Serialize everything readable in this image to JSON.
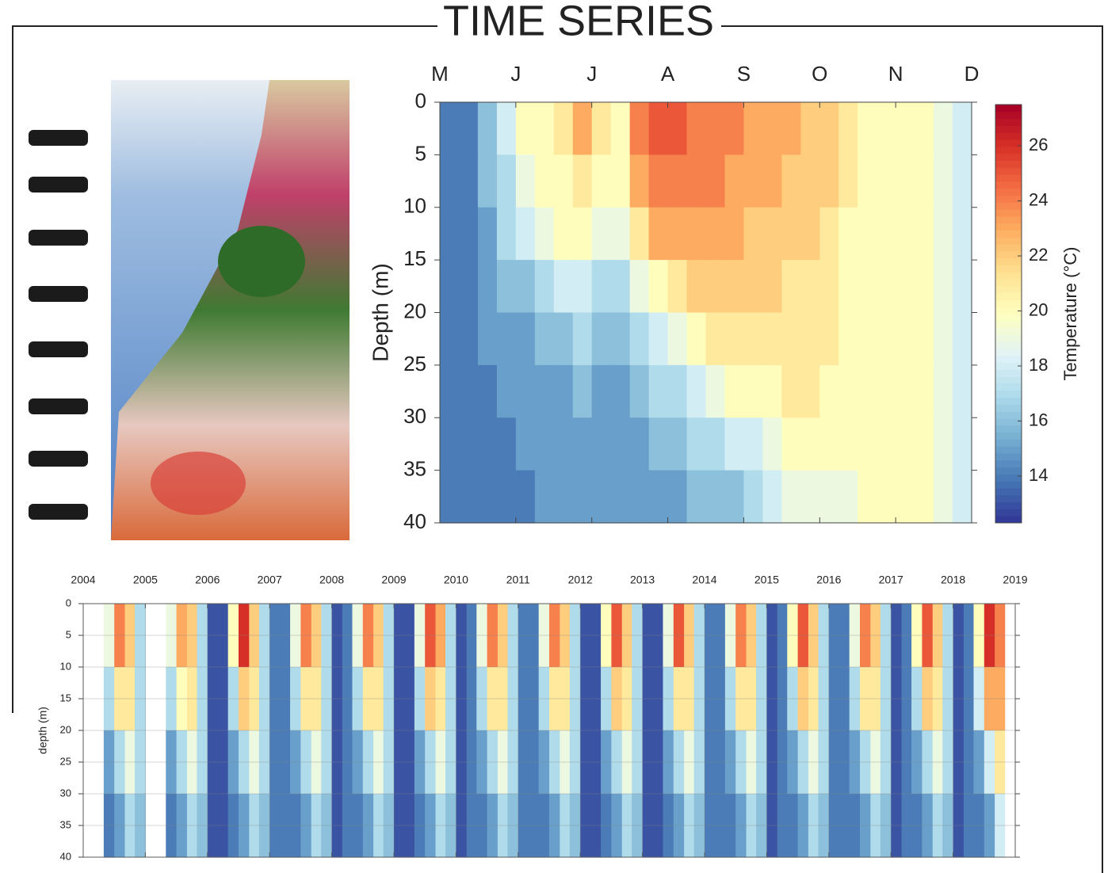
{
  "title": "TIME SERIES",
  "chart_data": [
    {
      "type": "heatmap",
      "ylabel": "Depth (m)",
      "xlim": [
        0,
        7
      ],
      "xticks": [
        {
          "value": 0,
          "label": "M"
        },
        {
          "value": 1,
          "label": "J"
        },
        {
          "value": 2,
          "label": "J"
        },
        {
          "value": 3,
          "label": "A"
        },
        {
          "value": 4,
          "label": "S"
        },
        {
          "value": 5,
          "label": "O"
        },
        {
          "value": 6,
          "label": "N"
        },
        {
          "value": 7,
          "label": "D"
        }
      ],
      "ylim": [
        0,
        40
      ],
      "y_reversed": true,
      "yticks": [
        0,
        5,
        10,
        15,
        20,
        25,
        30,
        35,
        40
      ],
      "xbins": [
        0,
        0.25,
        0.5,
        0.75,
        1,
        1.25,
        1.5,
        1.75,
        2,
        2.25,
        2.5,
        2.75,
        3,
        3.25,
        3.5,
        3.75,
        4,
        4.25,
        4.5,
        4.75,
        5,
        5.25,
        5.5,
        5.75,
        6,
        6.25,
        6.5,
        6.75,
        7
      ],
      "ybins": [
        0,
        5,
        10,
        15,
        20,
        25,
        30,
        35,
        40
      ],
      "z": [
        [
          14,
          14,
          16,
          18,
          20,
          20,
          21,
          23,
          21,
          20,
          24,
          25,
          25,
          24,
          24,
          24,
          23,
          23,
          23,
          22,
          22,
          21,
          20,
          20,
          20,
          20,
          19,
          18
        ],
        [
          14,
          14,
          16,
          17,
          19,
          20,
          20,
          21,
          20,
          20,
          23,
          24,
          24,
          24,
          24,
          23,
          23,
          23,
          22,
          22,
          22,
          21,
          20,
          20,
          20,
          20,
          19,
          18
        ],
        [
          14,
          14,
          15,
          17,
          18,
          19,
          20,
          20,
          19,
          19,
          21,
          23,
          23,
          23,
          23,
          23,
          22,
          22,
          22,
          22,
          21,
          20,
          20,
          20,
          20,
          20,
          19,
          18
        ],
        [
          14,
          14,
          15,
          16,
          16,
          17,
          18,
          18,
          17,
          17,
          19,
          20,
          21,
          22,
          22,
          22,
          22,
          22,
          21,
          21,
          21,
          20,
          20,
          20,
          20,
          20,
          19,
          18
        ],
        [
          14,
          14,
          15,
          15,
          15,
          16,
          16,
          17,
          16,
          16,
          17,
          18,
          19,
          20,
          21,
          21,
          21,
          21,
          21,
          21,
          21,
          20,
          20,
          20,
          20,
          20,
          19,
          18
        ],
        [
          14,
          14,
          14,
          15,
          15,
          15,
          15,
          16,
          15,
          15,
          16,
          17,
          17,
          18,
          19,
          20,
          20,
          20,
          21,
          21,
          20,
          20,
          20,
          20,
          20,
          20,
          19,
          18
        ],
        [
          14,
          14,
          14,
          14,
          15,
          15,
          15,
          15,
          15,
          15,
          15,
          16,
          16,
          17,
          17,
          18,
          18,
          19,
          20,
          20,
          20,
          20,
          20,
          20,
          20,
          20,
          19,
          18
        ],
        [
          14,
          14,
          14,
          14,
          14,
          15,
          15,
          15,
          15,
          15,
          15,
          15,
          15,
          16,
          16,
          16,
          17,
          18,
          19,
          19,
          19,
          19,
          20,
          20,
          20,
          20,
          19,
          18
        ]
      ],
      "clim": [
        12.3,
        27.5
      ],
      "colormap": [
        "#313695",
        "#4575b4",
        "#74add1",
        "#abd9e9",
        "#e0f3f8",
        "#ffffbf",
        "#fee090",
        "#fdae61",
        "#f46d43",
        "#d73027",
        "#a50026"
      ],
      "colorbar": {
        "label": "Temperature (°C)",
        "ticks": [
          14,
          16,
          18,
          20,
          22,
          24,
          26
        ]
      }
    },
    {
      "type": "heatmap",
      "ylabel": "depth (m)",
      "xlim": [
        2004,
        2019
      ],
      "xticks": [
        2004,
        2005,
        2006,
        2007,
        2008,
        2009,
        2010,
        2011,
        2012,
        2013,
        2014,
        2015,
        2016,
        2017,
        2018,
        2019
      ],
      "ylim": [
        0,
        40
      ],
      "y_reversed": true,
      "yticks": [
        0,
        5,
        10,
        15,
        20,
        25,
        30,
        35,
        40
      ],
      "grid": true,
      "xbins": [
        2004,
        2004.17,
        2004.33,
        2004.5,
        2004.67,
        2004.83,
        2005,
        2005.17,
        2005.33,
        2005.5,
        2005.67,
        2005.83,
        2006,
        2006.17,
        2006.33,
        2006.5,
        2006.67,
        2006.83,
        2007,
        2007.17,
        2007.33,
        2007.5,
        2007.67,
        2007.83,
        2008,
        2008.17,
        2008.33,
        2008.5,
        2008.67,
        2008.83,
        2009,
        2009.17,
        2009.33,
        2009.5,
        2009.67,
        2009.83,
        2010,
        2010.17,
        2010.33,
        2010.5,
        2010.67,
        2010.83,
        2011,
        2011.17,
        2011.33,
        2011.5,
        2011.67,
        2011.83,
        2012,
        2012.17,
        2012.33,
        2012.5,
        2012.67,
        2012.83,
        2013,
        2013.17,
        2013.33,
        2013.5,
        2013.67,
        2013.83,
        2014,
        2014.17,
        2014.33,
        2014.5,
        2014.67,
        2014.83,
        2015,
        2015.17,
        2015.33,
        2015.5,
        2015.67,
        2015.83,
        2016,
        2016.17,
        2016.33,
        2016.5,
        2016.67,
        2016.83,
        2017,
        2017.17,
        2017.33,
        2017.5,
        2017.67,
        2017.83,
        2018,
        2018.17,
        2018.33,
        2018.5,
        2018.67,
        2018.83,
        2019
      ],
      "ybins": [
        0,
        10,
        20,
        30,
        40
      ],
      "z": [
        [
          null,
          null,
          19,
          24,
          22,
          17,
          null,
          null,
          19,
          23,
          22,
          17,
          13,
          13,
          20,
          26,
          22,
          17,
          14,
          14,
          19,
          24,
          22,
          17,
          13,
          14,
          19,
          24,
          22,
          17,
          13,
          13,
          19,
          25,
          23,
          17,
          13,
          14,
          19,
          24,
          22,
          17,
          14,
          14,
          19,
          24,
          22,
          17,
          13,
          13,
          20,
          25,
          22,
          17,
          13,
          13,
          19,
          25,
          22,
          17,
          14,
          14,
          19,
          24,
          22,
          17,
          13,
          14,
          20,
          25,
          22,
          17,
          14,
          14,
          19,
          24,
          22,
          17,
          13,
          14,
          20,
          25,
          22,
          17,
          13,
          14,
          20,
          26,
          24,
          null
        ],
        [
          null,
          null,
          17,
          21,
          21,
          17,
          null,
          null,
          17,
          20,
          21,
          17,
          13,
          13,
          17,
          22,
          21,
          17,
          14,
          14,
          17,
          21,
          21,
          17,
          13,
          14,
          17,
          21,
          21,
          17,
          13,
          13,
          17,
          22,
          21,
          17,
          13,
          14,
          17,
          21,
          21,
          17,
          14,
          14,
          17,
          21,
          21,
          17,
          13,
          13,
          17,
          22,
          21,
          17,
          13,
          13,
          17,
          21,
          21,
          17,
          14,
          14,
          17,
          21,
          21,
          17,
          13,
          14,
          17,
          22,
          21,
          17,
          14,
          14,
          17,
          21,
          21,
          17,
          13,
          14,
          17,
          22,
          21,
          17,
          13,
          14,
          18,
          23,
          23,
          null
        ],
        [
          null,
          null,
          15,
          17,
          19,
          17,
          null,
          null,
          15,
          17,
          19,
          17,
          13,
          13,
          15,
          17,
          19,
          17,
          14,
          14,
          15,
          17,
          19,
          17,
          13,
          14,
          15,
          17,
          19,
          17,
          13,
          13,
          15,
          17,
          19,
          17,
          13,
          14,
          15,
          17,
          19,
          17,
          14,
          14,
          15,
          17,
          19,
          17,
          13,
          13,
          15,
          17,
          19,
          17,
          13,
          13,
          15,
          17,
          19,
          17,
          14,
          14,
          15,
          17,
          19,
          17,
          13,
          14,
          15,
          17,
          19,
          17,
          14,
          14,
          15,
          17,
          19,
          17,
          13,
          14,
          15,
          17,
          19,
          17,
          13,
          14,
          15,
          18,
          21,
          null
        ],
        [
          null,
          null,
          14,
          15,
          17,
          16,
          null,
          null,
          14,
          15,
          17,
          16,
          13,
          13,
          14,
          15,
          17,
          16,
          14,
          14,
          14,
          15,
          17,
          16,
          13,
          14,
          14,
          15,
          17,
          16,
          13,
          13,
          14,
          15,
          17,
          16,
          13,
          14,
          14,
          15,
          17,
          16,
          14,
          14,
          14,
          15,
          17,
          16,
          13,
          13,
          14,
          15,
          17,
          16,
          13,
          13,
          14,
          15,
          17,
          16,
          14,
          14,
          14,
          15,
          17,
          16,
          13,
          14,
          14,
          15,
          17,
          16,
          14,
          14,
          14,
          15,
          17,
          16,
          13,
          14,
          14,
          15,
          17,
          16,
          13,
          14,
          14,
          15,
          18,
          null
        ]
      ],
      "clim": [
        12.3,
        27.5
      ],
      "colormap": [
        "#313695",
        "#4575b4",
        "#74add1",
        "#abd9e9",
        "#e0f3f8",
        "#ffffbf",
        "#fee090",
        "#fdae61",
        "#f46d43",
        "#d73027",
        "#a50026"
      ]
    }
  ]
}
